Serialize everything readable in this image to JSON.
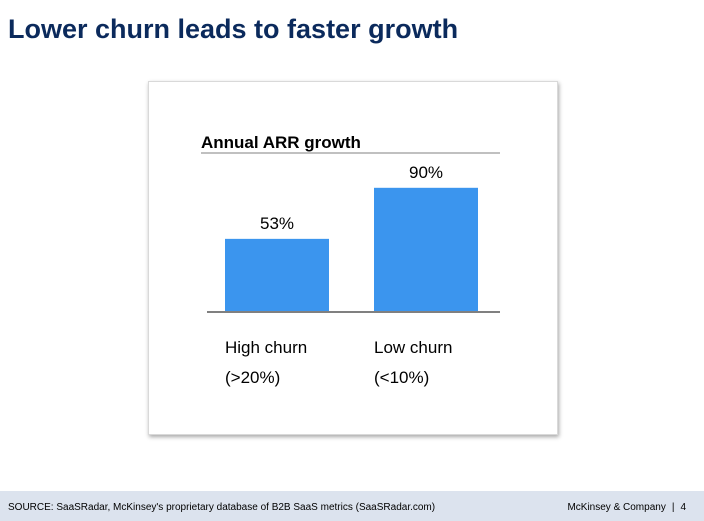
{
  "slide": {
    "title": "Lower churn leads to faster growth"
  },
  "chart_data": {
    "type": "bar",
    "title": "Annual ARR growth",
    "categories": [
      [
        "High churn",
        "(>20%)"
      ],
      [
        "Low churn",
        "(<10%)"
      ]
    ],
    "values": [
      53,
      90
    ],
    "value_labels": [
      "53%",
      "90%"
    ],
    "ylim": [
      0,
      100
    ],
    "bar_color": "#3b95ee",
    "axis_color": "#808080"
  },
  "footer": {
    "source": "SOURCE: SaaSRadar, McKinsey's proprietary database of B2B SaaS metrics (SaaSRadar.com)",
    "company": "McKinsey & Company",
    "separator": "|",
    "page_number": "4"
  }
}
